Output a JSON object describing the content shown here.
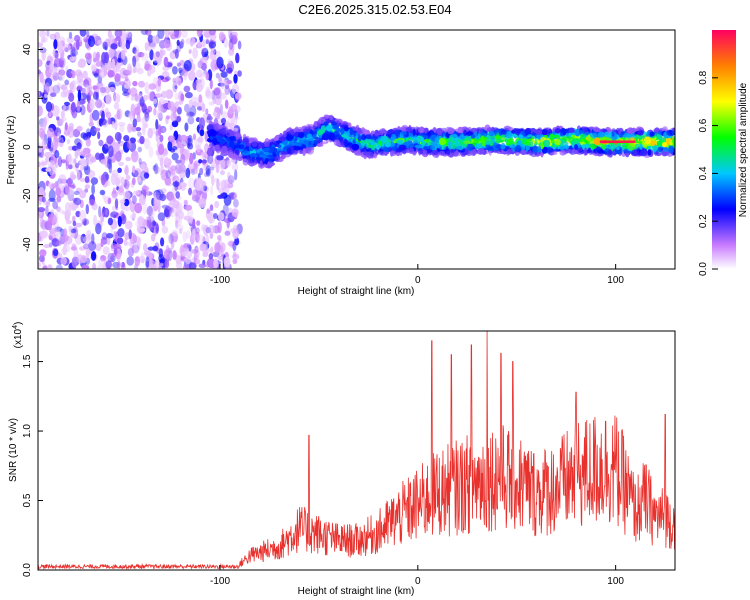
{
  "figure": {
    "title": "C2E6.2025.315.02.53.E04"
  },
  "chart_data": [
    {
      "type": "heatmap",
      "name": "spectrogram",
      "xlabel": "Height of straight line (km)",
      "ylabel": "Frequency (Hz)",
      "xlim": [
        -192,
        130
      ],
      "ylim": [
        -50,
        48
      ],
      "xticks": [
        -100,
        0,
        100
      ],
      "yticks": [
        -40,
        -20,
        0,
        20,
        40
      ],
      "description_values": {
        "noise_region_x": [
          -192,
          -90
        ],
        "signal_track": [
          {
            "x": -105,
            "y": 5
          },
          {
            "x": -95,
            "y": 2
          },
          {
            "x": -85,
            "y": -2
          },
          {
            "x": -75,
            "y": -3
          },
          {
            "x": -65,
            "y": 2
          },
          {
            "x": -55,
            "y": 3
          },
          {
            "x": -45,
            "y": 8
          },
          {
            "x": -35,
            "y": 4
          },
          {
            "x": -25,
            "y": 1
          },
          {
            "x": -15,
            "y": 2
          },
          {
            "x": -5,
            "y": 3
          },
          {
            "x": 5,
            "y": 2
          },
          {
            "x": 20,
            "y": 2
          },
          {
            "x": 40,
            "y": 3
          },
          {
            "x": 60,
            "y": 2
          },
          {
            "x": 80,
            "y": 3
          },
          {
            "x": 95,
            "y": 2
          },
          {
            "x": 110,
            "y": 2
          },
          {
            "x": 130,
            "y": 2
          }
        ]
      },
      "colorbar": {
        "label": "Normalized spectral amplitude",
        "range": [
          0,
          1
        ],
        "ticks": [
          "0.0",
          "0.2",
          "0.4",
          "0.6",
          "0.8"
        ]
      }
    },
    {
      "type": "line",
      "name": "snr",
      "xlabel": "Height of straight line (km)",
      "ylabel": "SNR (10 * v/v)",
      "scale_label": "(x10",
      "scale_exp": "4",
      "xlim": [
        -192,
        130
      ],
      "ylim": [
        0,
        1.72
      ],
      "xticks": [
        -100,
        0,
        100
      ],
      "yticks": [
        "0.0",
        "0.5",
        "1.0",
        "1.5"
      ],
      "color": "#e8302c",
      "envelope": {
        "x": [
          -192,
          -150,
          -100,
          -90,
          -85,
          -70,
          -60,
          -50,
          -40,
          -30,
          -20,
          -10,
          0,
          10,
          20,
          30,
          40,
          50,
          60,
          70,
          80,
          90,
          95,
          100,
          105,
          110,
          115,
          120,
          125,
          130
        ],
        "y": [
          0.02,
          0.02,
          0.03,
          0.05,
          0.12,
          0.2,
          0.35,
          0.3,
          0.25,
          0.25,
          0.32,
          0.45,
          0.55,
          0.65,
          0.7,
          0.75,
          0.8,
          0.75,
          0.65,
          0.7,
          0.8,
          0.85,
          0.9,
          0.85,
          0.7,
          0.5,
          0.6,
          0.45,
          0.45,
          0.4
        ]
      },
      "peaks": [
        {
          "x": -55,
          "y": 0.97
        },
        {
          "x": 7,
          "y": 1.65
        },
        {
          "x": 17,
          "y": 1.55
        },
        {
          "x": 27,
          "y": 1.62
        },
        {
          "x": 35,
          "y": 1.72
        },
        {
          "x": 42,
          "y": 1.56
        },
        {
          "x": 48,
          "y": 1.5
        },
        {
          "x": 80,
          "y": 1.28
        },
        {
          "x": 95,
          "y": 1.07
        },
        {
          "x": 125,
          "y": 1.12
        }
      ]
    }
  ]
}
